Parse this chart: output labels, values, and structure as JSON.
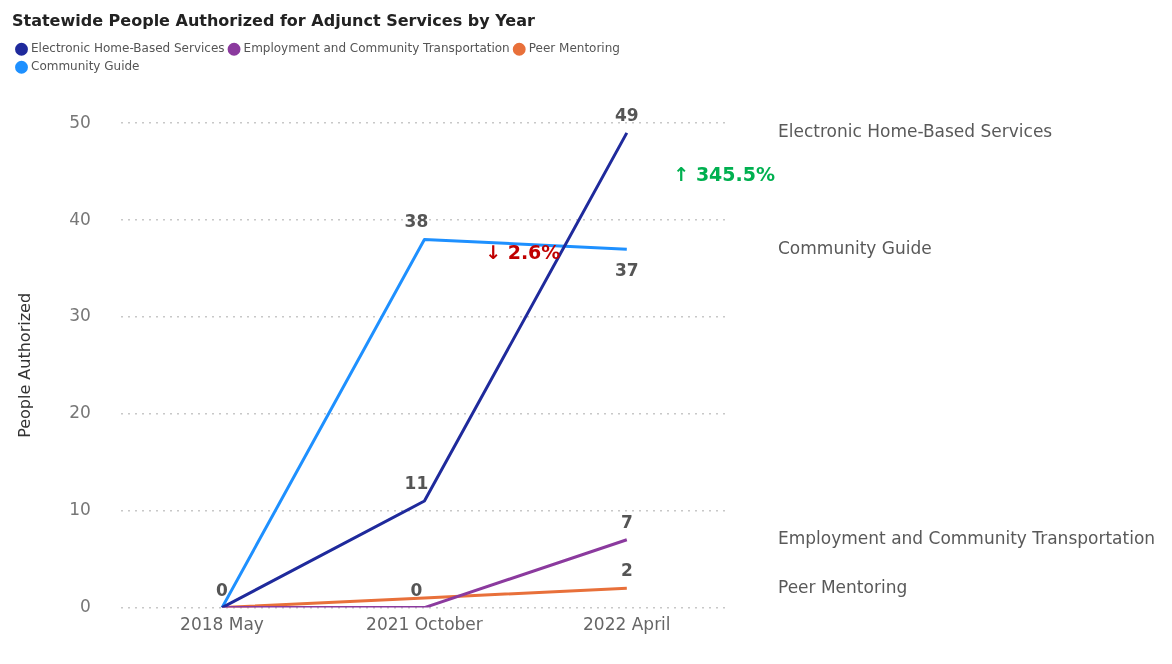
{
  "chart_data": {
    "type": "line",
    "title": "Statewide People Authorized for Adjunct Services by Year",
    "categories": [
      "2018 May",
      "2021 October",
      "2022 April"
    ],
    "series": [
      {
        "name": "Electronic Home-Based Services",
        "color": "#1f2a9c",
        "values": [
          0,
          11,
          49
        ],
        "value_labels": [
          null,
          "11",
          "49"
        ]
      },
      {
        "name": "Employment and Community Transportation",
        "color": "#8b3a9e",
        "values": [
          0,
          0,
          7
        ],
        "value_labels": [
          null,
          "0",
          "7"
        ]
      },
      {
        "name": "Peer Mentoring",
        "color": "#e8703a",
        "values": [
          0,
          1,
          2
        ],
        "value_labels": [
          null,
          null,
          "2"
        ]
      },
      {
        "name": "Community Guide",
        "color": "#1e90ff",
        "values": [
          0,
          38,
          37
        ],
        "value_labels": [
          "0",
          "38",
          "37"
        ]
      }
    ],
    "ylabel": "People Authorized",
    "ylim": [
      0,
      50
    ],
    "yticks": [
      0,
      10,
      20,
      30,
      40,
      50
    ],
    "grid": "y",
    "legend": "top left",
    "marker": "none",
    "line_style": "solid",
    "annotations": [
      "↑ 345.5%",
      "↓ 2.6%"
    ]
  }
}
